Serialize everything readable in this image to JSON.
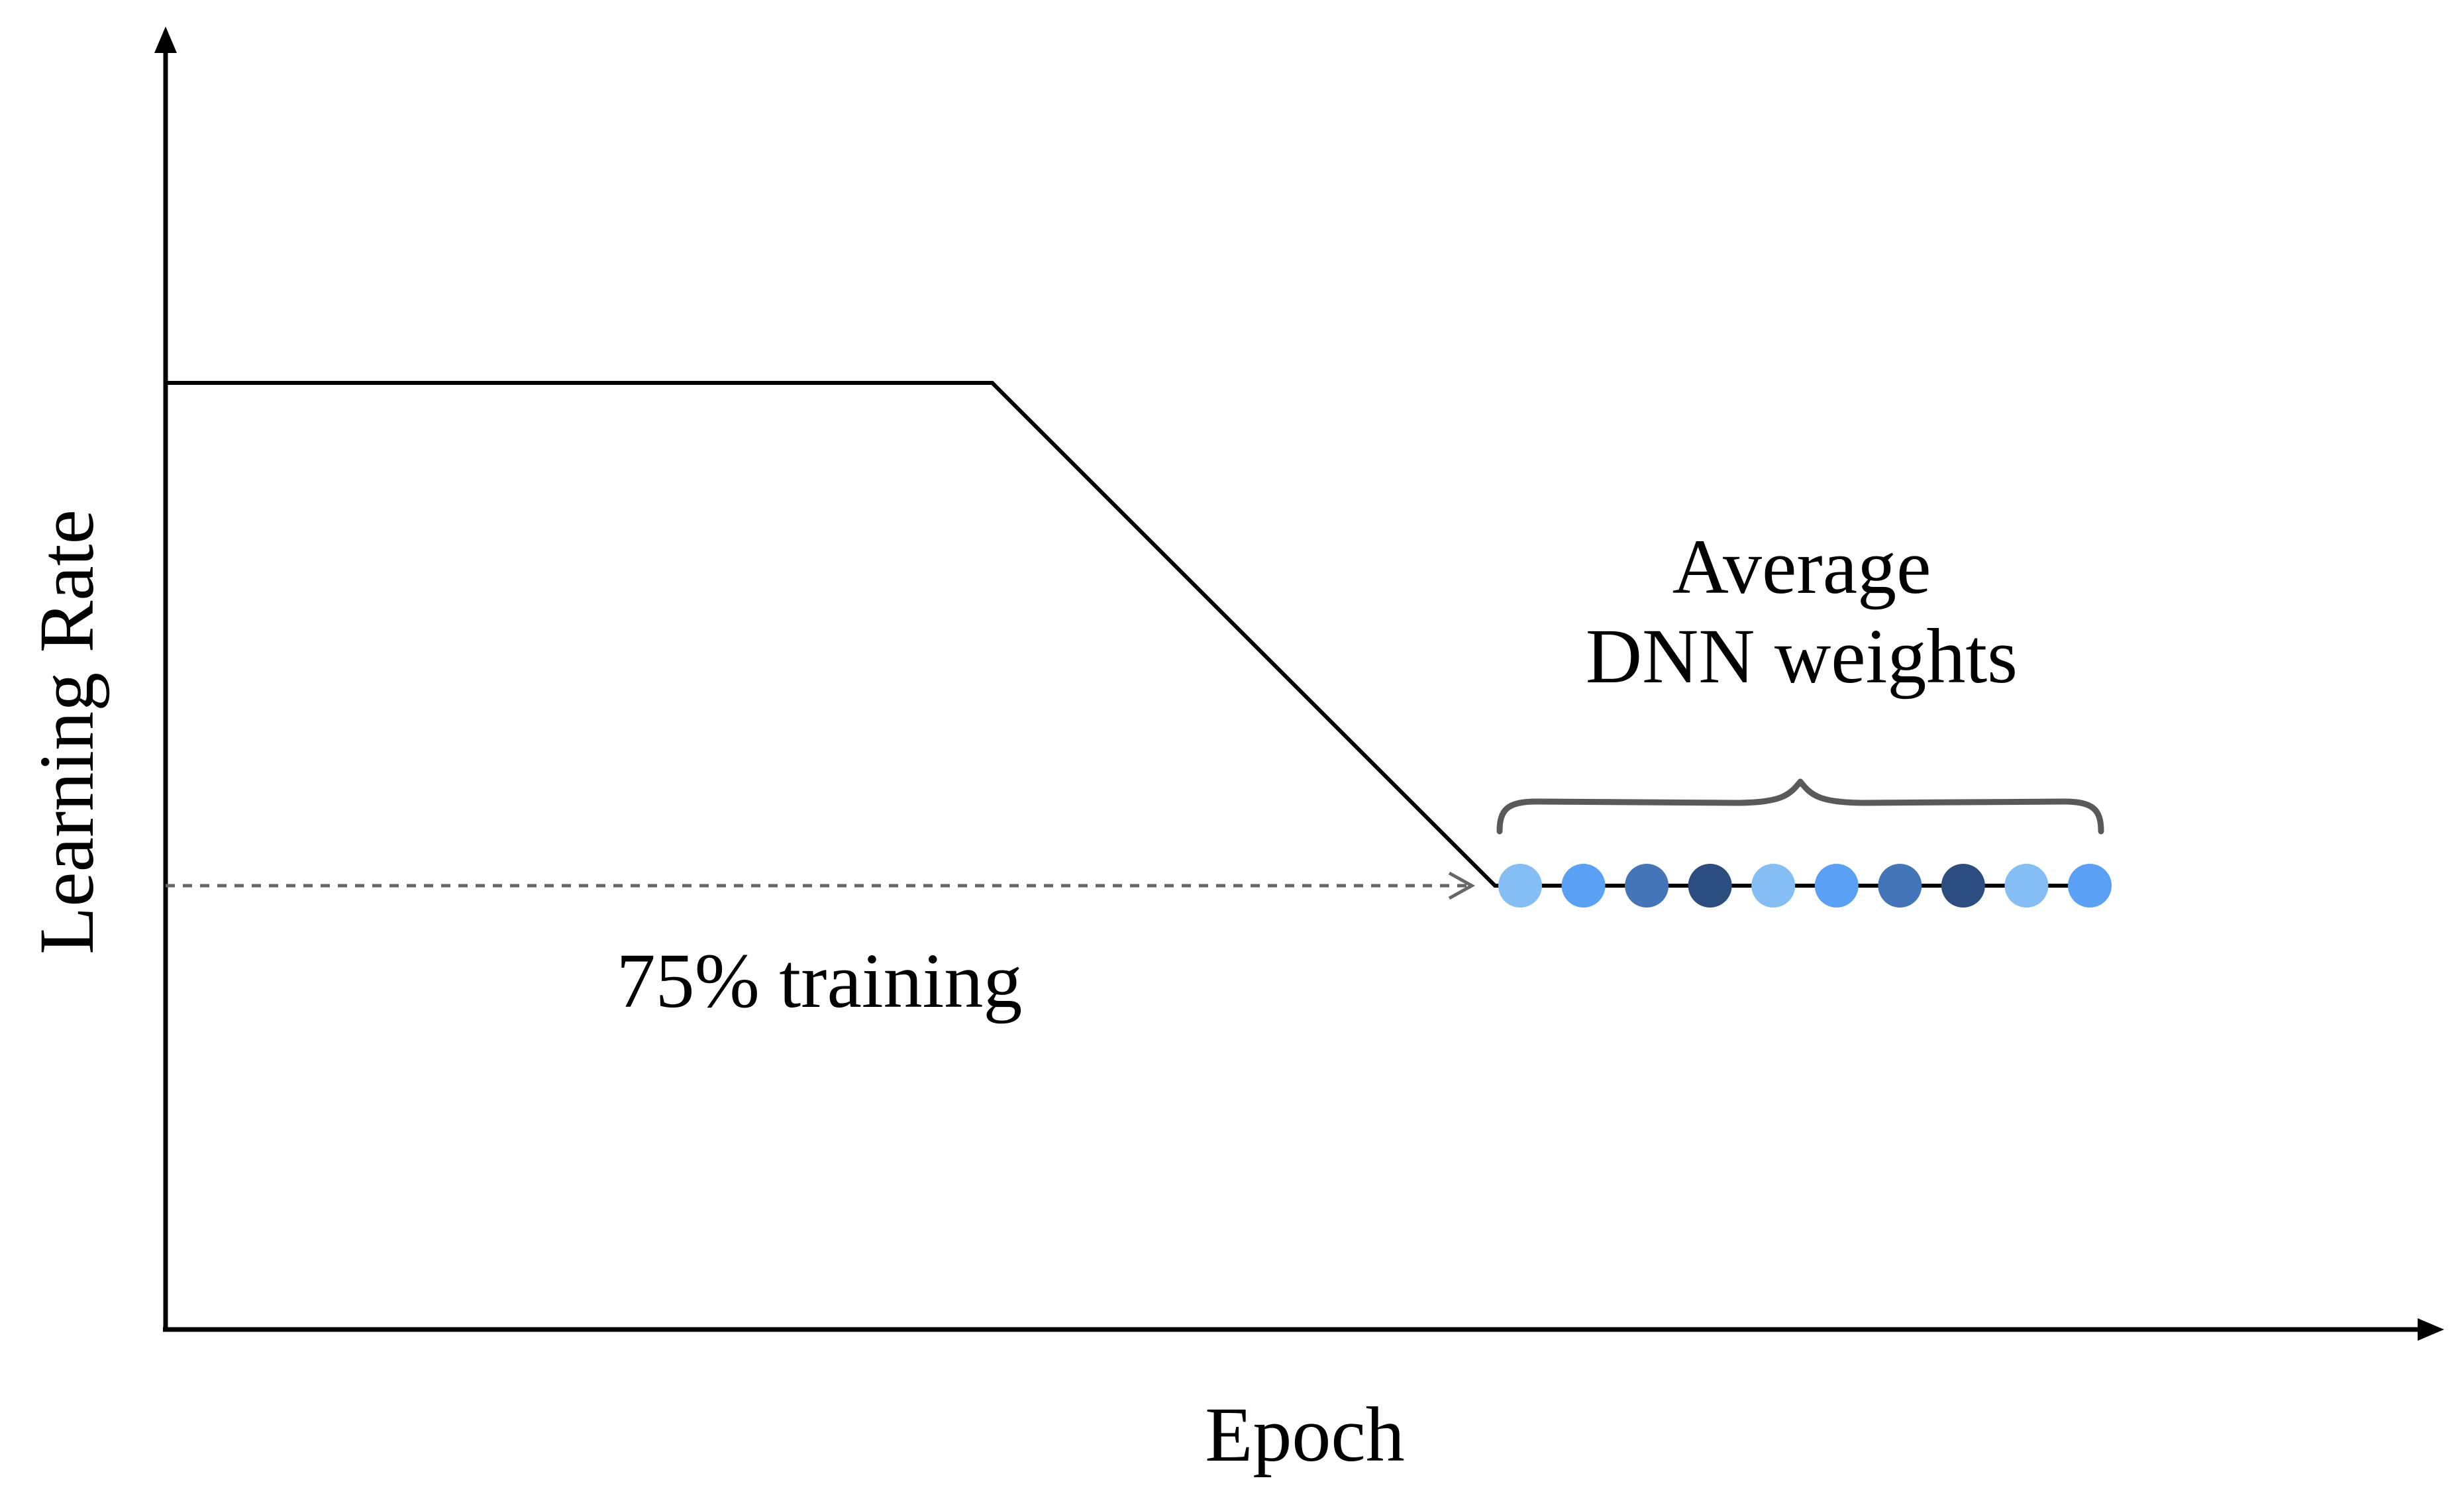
{
  "axes": {
    "x_label": "Epoch",
    "y_label": "Learning Rate"
  },
  "annotations": {
    "training_note": "75% training",
    "average_line1": "Average",
    "average_line2": "DNN weights"
  },
  "weight_snapshots": {
    "count": 10,
    "colors": [
      "#85bdf5",
      "#5aa0f5",
      "#4475b8",
      "#2c4d80",
      "#85bdf5",
      "#5aa0f5",
      "#4475b8",
      "#2c4d80",
      "#85bdf5",
      "#5aa0f5"
    ]
  },
  "colors": {
    "axis": "#000000",
    "schedule_line": "#000000",
    "dashed_arrow": "#666666",
    "brace": "#595959"
  }
}
